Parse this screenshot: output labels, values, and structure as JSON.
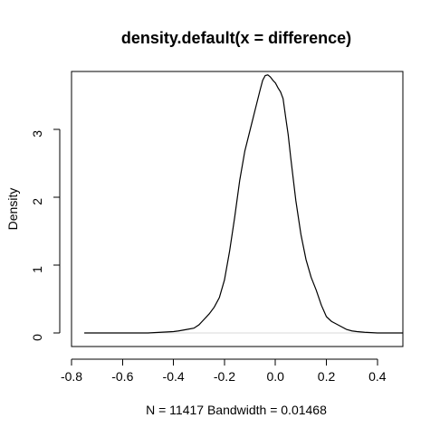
{
  "chart_data": {
    "type": "line",
    "title": "density.default(x = difference)",
    "xlabel": "N = 11417   Bandwidth = 0.01468",
    "ylabel": "Density",
    "xlim": [
      -0.8,
      0.5
    ],
    "ylim": [
      -0.2,
      3.85
    ],
    "x_ticks": [
      {
        "value": -0.8,
        "label": "-0.8"
      },
      {
        "value": -0.6,
        "label": "-0.6"
      },
      {
        "value": -0.4,
        "label": "-0.4"
      },
      {
        "value": -0.2,
        "label": "-0.2"
      },
      {
        "value": 0.0,
        "label": "0.0"
      },
      {
        "value": 0.2,
        "label": "0.2"
      },
      {
        "value": 0.4,
        "label": "0.4"
      }
    ],
    "y_ticks": [
      {
        "value": 0,
        "label": "0"
      },
      {
        "value": 1,
        "label": "1"
      },
      {
        "value": 2,
        "label": "2"
      },
      {
        "value": 3,
        "label": "3"
      }
    ],
    "series": [
      {
        "x": [
          -0.75,
          -0.7,
          -0.65,
          -0.6,
          -0.55,
          -0.5,
          -0.45,
          -0.4,
          -0.38,
          -0.35,
          -0.32,
          -0.3,
          -0.28,
          -0.26,
          -0.24,
          -0.22,
          -0.2,
          -0.18,
          -0.16,
          -0.14,
          -0.12,
          -0.1,
          -0.08,
          -0.06,
          -0.05,
          -0.04,
          -0.03,
          -0.02,
          -0.01,
          0.0,
          0.01,
          0.02,
          0.03,
          0.04,
          0.05,
          0.06,
          0.08,
          0.1,
          0.12,
          0.14,
          0.16,
          0.18,
          0.2,
          0.22,
          0.24,
          0.26,
          0.28,
          0.3,
          0.32,
          0.35,
          0.4,
          0.45,
          0.5
        ],
        "values": [
          0.0,
          0.0,
          0.0,
          0.0,
          0.0,
          0.0,
          0.01,
          0.02,
          0.03,
          0.05,
          0.07,
          0.12,
          0.2,
          0.28,
          0.38,
          0.52,
          0.78,
          1.2,
          1.7,
          2.25,
          2.68,
          2.98,
          3.28,
          3.58,
          3.72,
          3.79,
          3.8,
          3.77,
          3.72,
          3.68,
          3.61,
          3.55,
          3.45,
          3.18,
          2.92,
          2.58,
          1.95,
          1.45,
          1.08,
          0.82,
          0.63,
          0.41,
          0.24,
          0.17,
          0.13,
          0.09,
          0.05,
          0.03,
          0.02,
          0.01,
          0.0,
          0.0,
          0.0
        ]
      }
    ],
    "grid": false,
    "legend": "none"
  }
}
